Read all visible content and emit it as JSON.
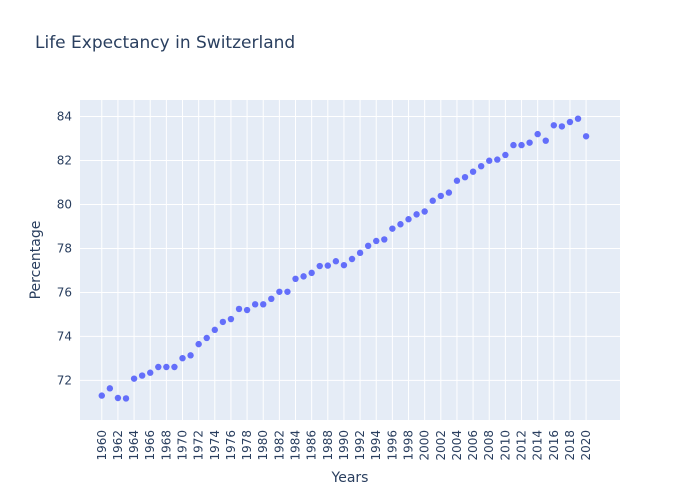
{
  "chart_data": {
    "type": "scatter",
    "title": "Life Expectancy in Switzerland",
    "xlabel": "Years",
    "ylabel": "Percentage",
    "xlim": [
      1957.3,
      2024.2
    ],
    "ylim": [
      70.2,
      84.75
    ],
    "x_ticks": [
      1960,
      1962,
      1964,
      1966,
      1968,
      1970,
      1972,
      1974,
      1976,
      1978,
      1980,
      1982,
      1984,
      1986,
      1988,
      1990,
      1992,
      1994,
      1996,
      1998,
      2000,
      2002,
      2004,
      2006,
      2008,
      2010,
      2012,
      2014,
      2016,
      2018,
      2020
    ],
    "y_ticks": [
      72,
      74,
      76,
      78,
      80,
      82,
      84
    ],
    "grid": true,
    "legend": "none",
    "colors": {
      "marker": "#636efa",
      "plot_bg": "#e5ecf6",
      "grid": "#ffffff",
      "text": "#2a3f5f"
    },
    "x": [
      1960,
      1961,
      1962,
      1963,
      1964,
      1965,
      1966,
      1967,
      1968,
      1969,
      1970,
      1971,
      1972,
      1973,
      1974,
      1975,
      1976,
      1977,
      1978,
      1979,
      1980,
      1981,
      1982,
      1983,
      1984,
      1985,
      1986,
      1987,
      1988,
      1989,
      1990,
      1991,
      1992,
      1993,
      1994,
      1995,
      1996,
      1997,
      1998,
      1999,
      2000,
      2001,
      2002,
      2003,
      2004,
      2005,
      2006,
      2007,
      2008,
      2009,
      2010,
      2011,
      2012,
      2013,
      2014,
      2015,
      2016,
      2017,
      2018,
      2019,
      2020
    ],
    "y": [
      71.31,
      71.64,
      71.2,
      71.18,
      72.08,
      72.22,
      72.35,
      72.61,
      72.61,
      72.61,
      73.01,
      73.14,
      73.65,
      73.93,
      74.3,
      74.66,
      74.79,
      75.25,
      75.2,
      75.46,
      75.46,
      75.71,
      76.03,
      76.03,
      76.62,
      76.73,
      76.89,
      77.2,
      77.22,
      77.42,
      77.24,
      77.52,
      77.8,
      78.12,
      78.34,
      78.41,
      78.9,
      79.1,
      79.33,
      79.55,
      79.68,
      80.17,
      80.39,
      80.54,
      81.08,
      81.24,
      81.49,
      81.74,
      81.99,
      82.04,
      82.25,
      82.7,
      82.7,
      82.81,
      83.2,
      82.9,
      83.6,
      83.55,
      83.75,
      83.9,
      83.1
    ]
  }
}
